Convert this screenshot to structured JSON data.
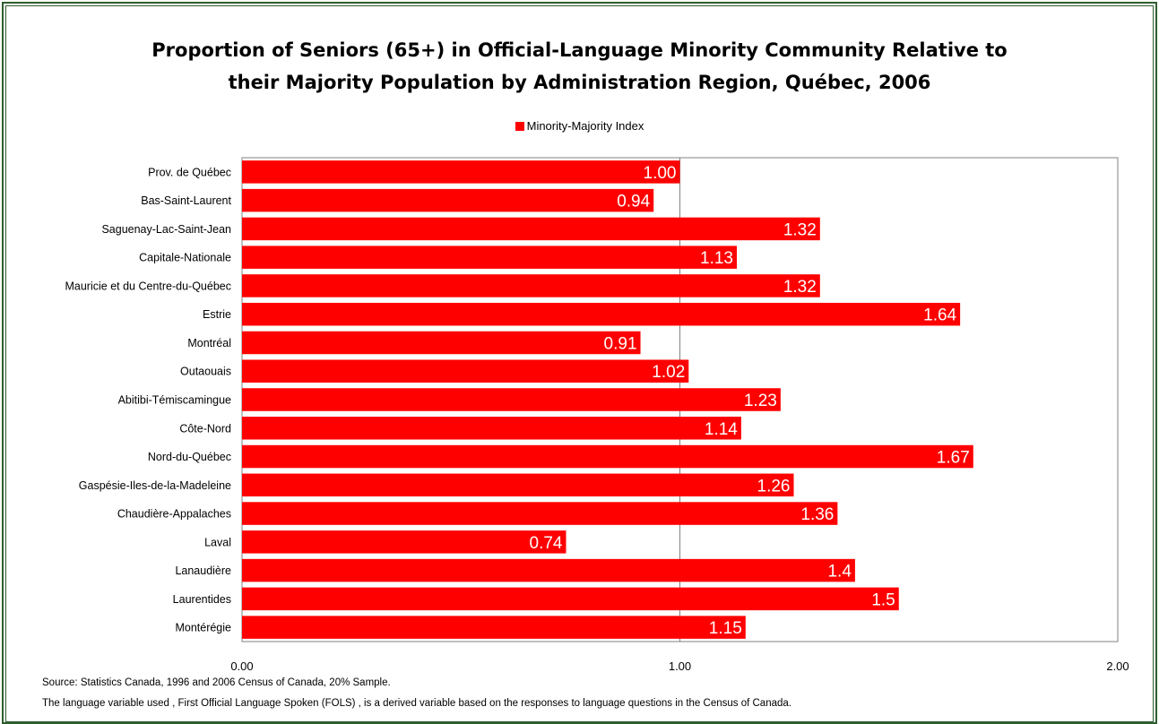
{
  "chart_data": {
    "type": "bar",
    "orientation": "horizontal",
    "title": "Proportion of Seniors (65+) in Official-Language Minority Community Relative to their Majority Population by Administration Region, Québec, 2006",
    "title_lines": [
      "Proportion of Seniors (65+) in Official-Language Minority Community Relative to",
      "their Majority Population by Administration Region, Québec, 2006"
    ],
    "legend": {
      "label": "Minority-Majority Index",
      "position": "top"
    },
    "bar_color": "#ff0000",
    "categories": [
      "Prov. de Québec",
      "Bas-Saint-Laurent",
      "Saguenay-Lac-Saint-Jean",
      "Capitale-Nationale",
      "Mauricie et du Centre-du-Québec",
      "Estrie",
      "Montréal",
      "Outaouais",
      "Abitibi-Témiscamingue",
      "Côte-Nord",
      "Nord-du-Québec",
      "Gaspésie-Iles-de-la-Madeleine",
      "Chaudière-Appalaches",
      "Laval",
      "Lanaudière",
      "Laurentides",
      "Montérégie"
    ],
    "series": [
      {
        "name": "Minority-Majority Index",
        "values": [
          1.0,
          0.94,
          1.32,
          1.13,
          1.32,
          1.64,
          0.91,
          1.02,
          1.23,
          1.14,
          1.67,
          1.26,
          1.36,
          0.74,
          1.4,
          1.5,
          1.15
        ],
        "labels": [
          "1.00",
          "0.94",
          "1.32",
          "1.13",
          "1.32",
          "1.64",
          "0.91",
          "1.02",
          "1.23",
          "1.14",
          "1.67",
          "1.26",
          "1.36",
          "0.74",
          "1.4",
          "1.5",
          "1.15"
        ]
      }
    ],
    "xlim": [
      0,
      2
    ],
    "x_ticks": [
      0,
      1,
      2
    ],
    "x_tick_labels": [
      "0.00",
      "1.00",
      "2.00"
    ],
    "gridlines": [
      1
    ]
  },
  "source_notes": [
    "Source: Statistics Canada, 1996 and 2006  Census of Canada, 20% Sample.",
    "The language variable used , First Official Language Spoken (FOLS) , is a derived variable based on the responses to language questions in the Census of Canada."
  ]
}
